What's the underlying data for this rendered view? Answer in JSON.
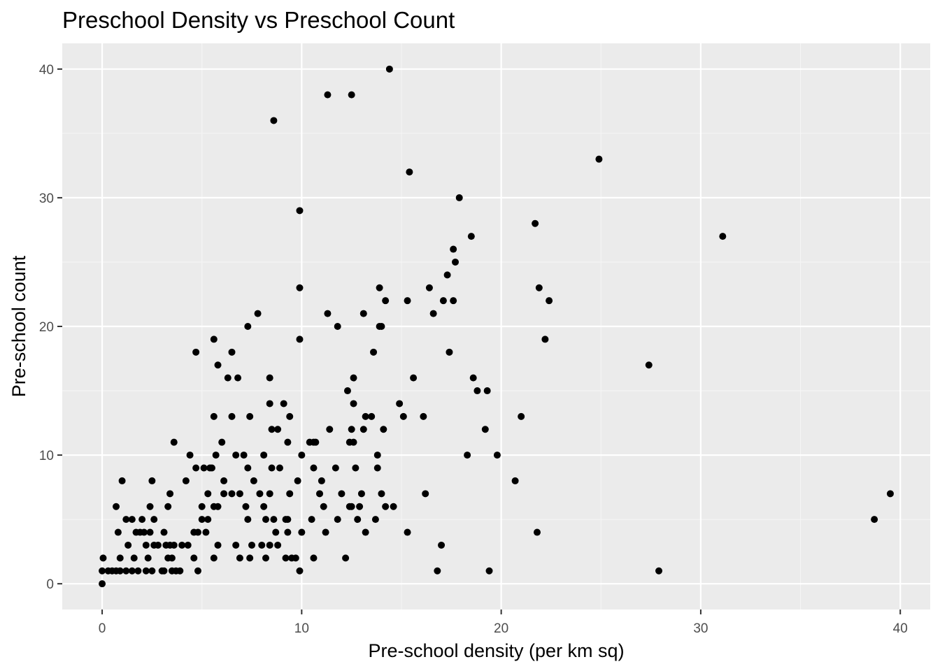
{
  "chart_data": {
    "type": "scatter",
    "title": "Preschool Density vs Preschool Count",
    "xlabel": "Pre-school density (per km sq)",
    "ylabel": "Pre-school count",
    "xlim": [
      -2,
      41.5
    ],
    "ylim": [
      -2,
      42
    ],
    "x_ticks": [
      0,
      10,
      20,
      30,
      40
    ],
    "y_ticks": [
      0,
      10,
      20,
      30,
      40
    ],
    "x_tick_labels": [
      "0",
      "10",
      "20",
      "30",
      "40"
    ],
    "y_tick_labels": [
      "0",
      "10",
      "20",
      "30",
      "40"
    ],
    "grid": true,
    "legend": "none",
    "colors": {
      "panel_background": "#EBEBEB",
      "grid_major": "#FFFFFF",
      "grid_minor": "#F5F5F5",
      "point": "#000000",
      "tick": "#333333",
      "tick_label": "#4D4D4D"
    },
    "points": [
      [
        0.0,
        0
      ],
      [
        0.0,
        1
      ],
      [
        0.05,
        2
      ],
      [
        0.3,
        1
      ],
      [
        0.5,
        1
      ],
      [
        0.7,
        1
      ],
      [
        0.7,
        6
      ],
      [
        0.8,
        4
      ],
      [
        0.9,
        1
      ],
      [
        0.9,
        2
      ],
      [
        1.0,
        8
      ],
      [
        1.2,
        1
      ],
      [
        1.2,
        5
      ],
      [
        1.3,
        3
      ],
      [
        1.5,
        5
      ],
      [
        1.5,
        1
      ],
      [
        1.6,
        2
      ],
      [
        1.7,
        4
      ],
      [
        1.8,
        1
      ],
      [
        1.9,
        4
      ],
      [
        2.0,
        5
      ],
      [
        2.1,
        4
      ],
      [
        2.2,
        1
      ],
      [
        2.2,
        3
      ],
      [
        2.3,
        2
      ],
      [
        2.4,
        6
      ],
      [
        2.4,
        4
      ],
      [
        2.5,
        1
      ],
      [
        2.5,
        8
      ],
      [
        2.6,
        3
      ],
      [
        2.6,
        5
      ],
      [
        2.8,
        3
      ],
      [
        3.0,
        1
      ],
      [
        3.1,
        4
      ],
      [
        3.1,
        1
      ],
      [
        3.2,
        3
      ],
      [
        3.3,
        2
      ],
      [
        3.3,
        6
      ],
      [
        3.4,
        3
      ],
      [
        3.4,
        7
      ],
      [
        3.5,
        1
      ],
      [
        3.5,
        2
      ],
      [
        3.6,
        11
      ],
      [
        3.6,
        3
      ],
      [
        3.7,
        1
      ],
      [
        3.9,
        1
      ],
      [
        4.0,
        3
      ],
      [
        4.2,
        8
      ],
      [
        4.3,
        3
      ],
      [
        4.4,
        10
      ],
      [
        4.6,
        4
      ],
      [
        4.6,
        2
      ],
      [
        4.7,
        18
      ],
      [
        4.7,
        9
      ],
      [
        4.8,
        4
      ],
      [
        4.8,
        1
      ],
      [
        5.0,
        6
      ],
      [
        5.0,
        5
      ],
      [
        5.1,
        9
      ],
      [
        5.2,
        4
      ],
      [
        5.3,
        5
      ],
      [
        5.3,
        7
      ],
      [
        5.4,
        9
      ],
      [
        5.5,
        9
      ],
      [
        5.6,
        19
      ],
      [
        5.6,
        13
      ],
      [
        5.6,
        2
      ],
      [
        5.6,
        6
      ],
      [
        5.7,
        10
      ],
      [
        5.8,
        17
      ],
      [
        5.8,
        6
      ],
      [
        5.8,
        3
      ],
      [
        6.0,
        11
      ],
      [
        6.1,
        8
      ],
      [
        6.1,
        7
      ],
      [
        6.3,
        16
      ],
      [
        6.5,
        18
      ],
      [
        6.5,
        13
      ],
      [
        6.5,
        7
      ],
      [
        6.7,
        3
      ],
      [
        6.7,
        10
      ],
      [
        6.8,
        16
      ],
      [
        6.9,
        7
      ],
      [
        6.9,
        2
      ],
      [
        7.1,
        10
      ],
      [
        7.2,
        6
      ],
      [
        7.3,
        9
      ],
      [
        7.3,
        5
      ],
      [
        7.3,
        20
      ],
      [
        7.4,
        13
      ],
      [
        7.4,
        2
      ],
      [
        7.5,
        3
      ],
      [
        7.6,
        8
      ],
      [
        7.8,
        21
      ],
      [
        7.9,
        7
      ],
      [
        8.0,
        3
      ],
      [
        8.1,
        10
      ],
      [
        8.1,
        6
      ],
      [
        8.2,
        5
      ],
      [
        8.2,
        2
      ],
      [
        8.4,
        14
      ],
      [
        8.4,
        16
      ],
      [
        8.4,
        7
      ],
      [
        8.4,
        3
      ],
      [
        8.5,
        12
      ],
      [
        8.5,
        9
      ],
      [
        8.6,
        5
      ],
      [
        8.6,
        36
      ],
      [
        8.7,
        4
      ],
      [
        8.8,
        12
      ],
      [
        8.8,
        3
      ],
      [
        8.9,
        9
      ],
      [
        9.1,
        14
      ],
      [
        9.2,
        5
      ],
      [
        9.2,
        2
      ],
      [
        9.3,
        11
      ],
      [
        9.3,
        5
      ],
      [
        9.3,
        4
      ],
      [
        9.4,
        13
      ],
      [
        9.4,
        7
      ],
      [
        9.5,
        2
      ],
      [
        9.7,
        2
      ],
      [
        9.8,
        8
      ],
      [
        9.9,
        23
      ],
      [
        9.9,
        29
      ],
      [
        9.9,
        19
      ],
      [
        9.9,
        1
      ],
      [
        10.0,
        4
      ],
      [
        10.0,
        10
      ],
      [
        10.4,
        11
      ],
      [
        10.5,
        5
      ],
      [
        10.6,
        11
      ],
      [
        10.6,
        2
      ],
      [
        10.6,
        9
      ],
      [
        10.7,
        11
      ],
      [
        10.9,
        7
      ],
      [
        11.0,
        8
      ],
      [
        11.1,
        6
      ],
      [
        11.2,
        4
      ],
      [
        11.3,
        21
      ],
      [
        11.3,
        38
      ],
      [
        11.4,
        12
      ],
      [
        11.7,
        9
      ],
      [
        11.8,
        5
      ],
      [
        11.8,
        20
      ],
      [
        12.0,
        7
      ],
      [
        12.2,
        2
      ],
      [
        12.3,
        15
      ],
      [
        12.4,
        6
      ],
      [
        12.4,
        11
      ],
      [
        12.5,
        38
      ],
      [
        12.5,
        12
      ],
      [
        12.5,
        6
      ],
      [
        12.6,
        16
      ],
      [
        12.6,
        14
      ],
      [
        12.6,
        11
      ],
      [
        12.7,
        9
      ],
      [
        12.8,
        5
      ],
      [
        12.9,
        6
      ],
      [
        13.0,
        7
      ],
      [
        13.1,
        12
      ],
      [
        13.1,
        21
      ],
      [
        13.2,
        4
      ],
      [
        13.2,
        13
      ],
      [
        13.5,
        13
      ],
      [
        13.6,
        18
      ],
      [
        13.7,
        5
      ],
      [
        13.8,
        9
      ],
      [
        13.8,
        10
      ],
      [
        13.9,
        23
      ],
      [
        13.9,
        20
      ],
      [
        14.0,
        7
      ],
      [
        14.0,
        20
      ],
      [
        14.1,
        12
      ],
      [
        14.2,
        22
      ],
      [
        14.2,
        6
      ],
      [
        14.4,
        40
      ],
      [
        14.6,
        6
      ],
      [
        14.9,
        14
      ],
      [
        15.1,
        13
      ],
      [
        15.3,
        22
      ],
      [
        15.3,
        4
      ],
      [
        15.4,
        32
      ],
      [
        15.6,
        16
      ],
      [
        16.1,
        13
      ],
      [
        16.2,
        7
      ],
      [
        16.4,
        23
      ],
      [
        16.6,
        21
      ],
      [
        16.8,
        1
      ],
      [
        17.0,
        3
      ],
      [
        17.1,
        22
      ],
      [
        17.3,
        24
      ],
      [
        17.4,
        18
      ],
      [
        17.6,
        26
      ],
      [
        17.6,
        22
      ],
      [
        17.7,
        25
      ],
      [
        17.9,
        30
      ],
      [
        18.3,
        10
      ],
      [
        18.5,
        27
      ],
      [
        18.6,
        16
      ],
      [
        18.8,
        15
      ],
      [
        19.2,
        12
      ],
      [
        19.3,
        15
      ],
      [
        19.4,
        1
      ],
      [
        19.8,
        10
      ],
      [
        20.7,
        8
      ],
      [
        21.0,
        13
      ],
      [
        21.7,
        28
      ],
      [
        21.8,
        4
      ],
      [
        21.9,
        23
      ],
      [
        22.2,
        19
      ],
      [
        22.4,
        22
      ],
      [
        24.9,
        33
      ],
      [
        27.4,
        17
      ],
      [
        27.9,
        1
      ],
      [
        31.1,
        27
      ],
      [
        38.7,
        5
      ],
      [
        39.5,
        7
      ]
    ]
  }
}
